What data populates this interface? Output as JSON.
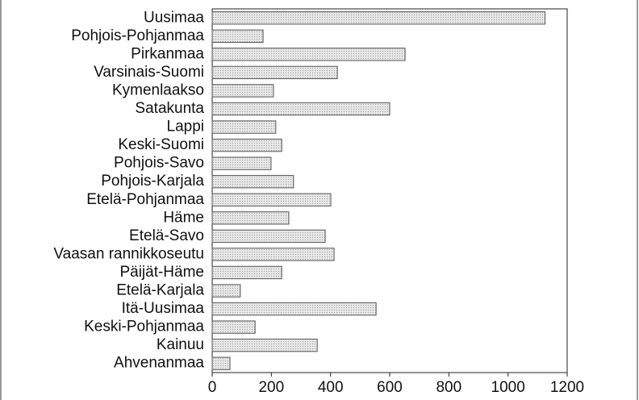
{
  "chart_data": {
    "type": "barh",
    "categories": [
      "Uusimaa",
      "Pohjois-Pohjanmaa",
      "Pirkanmaa",
      "Varsinais-Suomi",
      "Kymenlaakso",
      "Satakunta",
      "Lappi",
      "Keski-Suomi",
      "Pohjois-Savo",
      "Pohjois-Karjala",
      "Etelä-Pohjanmaa",
      "Häme",
      "Etelä-Savo",
      "Vaasan rannikkoseutu",
      "Päijät-Häme",
      "Etelä-Karjala",
      "Itä-Uusimaa",
      "Keski-Pohjanmaa",
      "Kainuu",
      "Ahvenanmaa"
    ],
    "values": [
      1125,
      172,
      652,
      423,
      207,
      600,
      215,
      235,
      199,
      275,
      401,
      259,
      382,
      412,
      235,
      95,
      554,
      145,
      355,
      60
    ],
    "color": "#dcdcdc",
    "xlim": [
      0,
      1200
    ],
    "xticks": [
      0,
      200,
      400,
      600,
      800,
      1000,
      1200
    ],
    "grid": false
  }
}
